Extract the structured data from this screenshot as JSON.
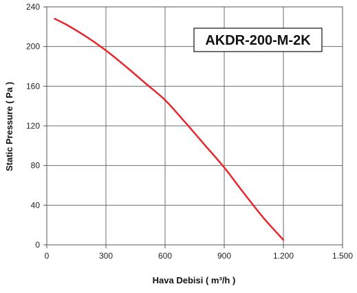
{
  "chart_data": {
    "type": "line",
    "xlabel": "Hava Debisi ( m³/h )",
    "ylabel": "Static Pressure ( Pa )",
    "xlim": [
      0,
      1500
    ],
    "ylim": [
      0,
      240
    ],
    "x_ticks": [
      0,
      300,
      600,
      900,
      1200,
      1500
    ],
    "x_tick_labels": [
      "0",
      "300",
      "600",
      "900",
      "1.200",
      "1.500"
    ],
    "y_ticks": [
      0,
      40,
      80,
      120,
      160,
      200,
      240
    ],
    "y_tick_labels": [
      "0",
      "40",
      "80",
      "120",
      "160",
      "200",
      "240"
    ],
    "grid": true,
    "annotation": "AKDR-200-M-2K",
    "series": [
      {
        "color": "#e8262b",
        "x": [
          40,
          100,
          200,
          300,
          400,
          500,
          600,
          700,
          800,
          900,
          1000,
          1100,
          1200
        ],
        "y": [
          228,
          222,
          210,
          196,
          180,
          163,
          146,
          124,
          101,
          78,
          52,
          27,
          5
        ]
      }
    ]
  }
}
